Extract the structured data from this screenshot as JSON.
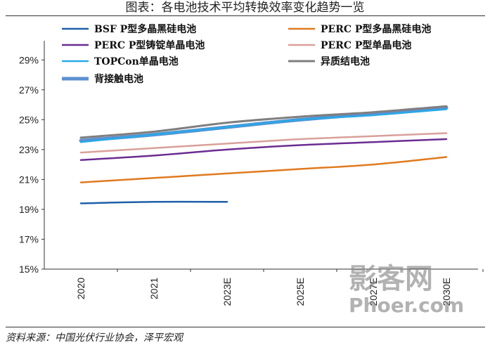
{
  "title": "图表：各电池技术平均转换效率变化趋势一览",
  "source": "资料来源：中国光伏行业协会，泽平宏观",
  "watermark": {
    "line1": "影客网",
    "line2": "Phoer.com"
  },
  "chart_data": {
    "type": "line",
    "categories": [
      "2020",
      "2021",
      "2023E",
      "2025E",
      "2027E",
      "2030E"
    ],
    "category_labels": [
      "2020",
      "2021",
      "2023E",
      "2025E",
      "2027E",
      "2030E"
    ],
    "ylim": [
      15,
      30
    ],
    "yticks": [
      15,
      17,
      19,
      21,
      23,
      25,
      27,
      29
    ],
    "ytick_labels": [
      "15%",
      "17%",
      "19%",
      "21%",
      "23%",
      "25%",
      "27%",
      "29%"
    ],
    "legend_position": "top",
    "series": [
      {
        "name": "BSF P型多晶黑硅电池",
        "color": "#1f5fa8",
        "width": 2.5,
        "values": [
          19.4,
          19.5,
          19.5,
          null,
          null,
          null
        ]
      },
      {
        "name": "PERC P型多晶黑硅电池",
        "color": "#e07a1f",
        "width": 2.5,
        "values": [
          20.8,
          21.1,
          21.4,
          21.7,
          22.0,
          22.5
        ]
      },
      {
        "name": "PERC P型铸锭单晶电池",
        "color": "#6a2d91",
        "width": 2.5,
        "values": [
          22.3,
          22.6,
          23.0,
          23.3,
          23.5,
          23.7
        ]
      },
      {
        "name": "PERC P型单晶电池",
        "color": "#d9a09a",
        "width": 2.5,
        "values": [
          22.8,
          23.1,
          23.4,
          23.7,
          23.9,
          24.1
        ]
      },
      {
        "name": "TOPCon单晶电池",
        "color": "#29a9e6",
        "width": 2.5,
        "values": [
          23.5,
          24.0,
          24.5,
          25.0,
          25.3,
          25.7
        ]
      },
      {
        "name": "异质结电池",
        "color": "#7f7f7f",
        "width": 3,
        "values": [
          23.8,
          24.2,
          24.8,
          25.2,
          25.5,
          25.9
        ]
      },
      {
        "name": "背接触电池",
        "color": "#5b8fd1",
        "width": 5,
        "values": [
          23.6,
          24.0,
          24.5,
          25.0,
          25.4,
          25.8
        ]
      }
    ]
  }
}
